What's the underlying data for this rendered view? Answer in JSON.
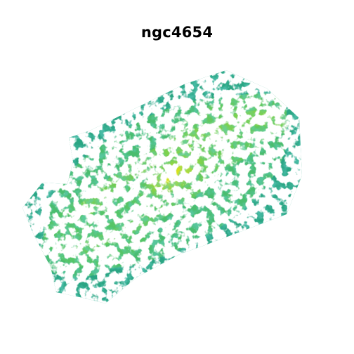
{
  "figure": {
    "title": "ngc4654"
  },
  "image": {
    "subject": "galaxy-intensity-map",
    "colormap": "viridis",
    "colors": {
      "background": "#ffffff",
      "low": "#1f9e89",
      "mid": "#6ece58",
      "high": "#b5de2b",
      "peak": "#e8e419"
    }
  }
}
